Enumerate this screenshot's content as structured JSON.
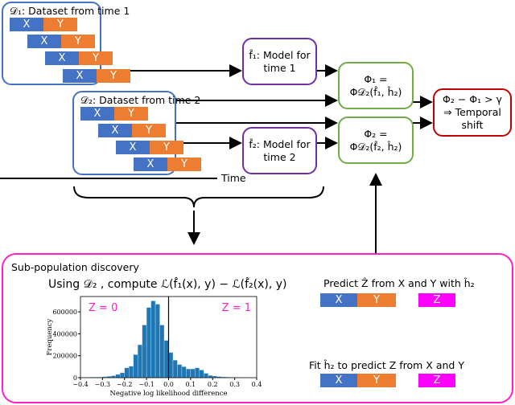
{
  "d1": {
    "title": "𝒟₁: Dataset from time 1"
  },
  "d2": {
    "title": "𝒟₂: Dataset from time 2"
  },
  "cells": {
    "x": "X",
    "y": "Y",
    "z": "Z"
  },
  "f1": {
    "line1": "f̂₁: Model for",
    "line2": "time 1"
  },
  "f2": {
    "line1": "f̂₂: Model for",
    "line2": "time 2"
  },
  "phi1": {
    "line1": "Φ₁ =",
    "line2": "Φ𝒟₂(f̂₁, ĥ₂)"
  },
  "phi2": {
    "line1": "Φ₂ =",
    "line2": "Φ𝒟₂(f̂₂, ĥ₂)"
  },
  "shift": {
    "line1": "Φ₂ − Φ₁ > γ",
    "line2": "⇒ Temporal",
    "line3": "shift"
  },
  "time_label": "Time",
  "subpop": {
    "title": "Sub-population discovery",
    "compute": "Using 𝒟₂ , compute ℒ(f̂₁(x), y) − ℒ(f̂₂(x), y)",
    "predict": "Predict Ẑ from X and Y with ĥ₂",
    "fit": "Fit ĥ₂ to predict Z from X and Y"
  },
  "colors": {
    "x": "#4472c4",
    "y": "#ed7d31",
    "z": "#ff00ff",
    "bars": "#1f77b4"
  },
  "chart_data": {
    "type": "bar",
    "xlabel": "Negative log likelihood difference",
    "ylabel": "Frequency",
    "xlim": [
      -0.4,
      0.4
    ],
    "ylim": [
      0,
      740000
    ],
    "xticks": [
      "−0.4",
      "−0.3",
      "−0.2",
      "−0.1",
      "0.0",
      "0.1",
      "0.2",
      "0.3",
      "0.4"
    ],
    "yticks": [
      "0",
      "200000",
      "400000",
      "600000"
    ],
    "annotations": [
      "Z = 0",
      "Z = 1"
    ],
    "bin_width": 0.02,
    "bin_starts": [
      -0.4,
      -0.38,
      -0.36,
      -0.34,
      -0.32,
      -0.3,
      -0.28,
      -0.26,
      -0.24,
      -0.22,
      -0.2,
      -0.18,
      -0.16,
      -0.14,
      -0.12,
      -0.1,
      -0.08,
      -0.06,
      -0.04,
      -0.02,
      0,
      0.02,
      0.04,
      0.06,
      0.08,
      0.1,
      0.12,
      0.14,
      0.16,
      0.18,
      0.2,
      0.22,
      0.24,
      0.26,
      0.28,
      0.3,
      0.32,
      0.34,
      0.36,
      0.38
    ],
    "values": [
      2000,
      3000,
      4000,
      5000,
      6000,
      8000,
      12000,
      18000,
      30000,
      45000,
      90000,
      105000,
      210000,
      300000,
      480000,
      640000,
      700000,
      670000,
      480000,
      340000,
      230000,
      160000,
      120000,
      100000,
      80000,
      80000,
      90000,
      70000,
      40000,
      20000,
      15000,
      10000,
      7000,
      5000,
      3000,
      2000,
      1000,
      1000,
      0,
      0
    ]
  }
}
